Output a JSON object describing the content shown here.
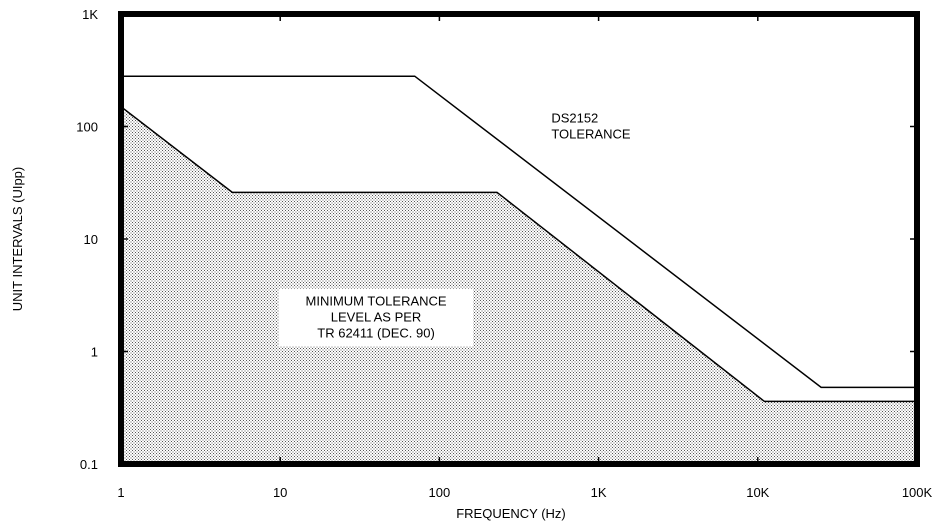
{
  "chart_data": {
    "type": "area",
    "xscale": "log",
    "yscale": "log",
    "xlim": [
      1,
      100000
    ],
    "ylim": [
      0.1,
      1000
    ],
    "xlabel": "FREQUENCY (Hz)",
    "ylabel": "UNIT INTERVALS (UIpp)",
    "xticks": [
      {
        "value": 1,
        "label": "1"
      },
      {
        "value": 10,
        "label": "10"
      },
      {
        "value": 100,
        "label": "100"
      },
      {
        "value": 1000,
        "label": "1K"
      },
      {
        "value": 10000,
        "label": "10K"
      },
      {
        "value": 100000,
        "label": "100K"
      }
    ],
    "yticks": [
      {
        "value": 0.1,
        "label": "0.1"
      },
      {
        "value": 1,
        "label": "1"
      },
      {
        "value": 10,
        "label": "10"
      },
      {
        "value": 100,
        "label": "100"
      },
      {
        "value": 1000,
        "label": "1K"
      }
    ],
    "grid": false,
    "series": [
      {
        "name": "DS2152 TOLERANCE",
        "style": "line",
        "color": "#000000",
        "points": [
          [
            1,
            280
          ],
          [
            70,
            280
          ],
          [
            25000,
            0.48
          ],
          [
            100000,
            0.48
          ]
        ]
      },
      {
        "name": "MINIMUM TOLERANCE LEVEL AS PER TR 62411 (DEC. 90)",
        "style": "filled-area",
        "color": "#000000",
        "fill": "stippled-gray",
        "points": [
          [
            1,
            150
          ],
          [
            5,
            26
          ],
          [
            230,
            26
          ],
          [
            11000,
            0.36
          ],
          [
            100000,
            0.36
          ]
        ]
      }
    ],
    "annotations": [
      {
        "lines": [
          "DS2152",
          "TOLERANCE"
        ],
        "x": 900,
        "y": 100
      },
      {
        "lines": [
          "MINIMUM TOLERANCE",
          "LEVEL AS PER",
          "TR 62411 (DEC. 90)"
        ],
        "x": 40,
        "y": 2
      }
    ]
  }
}
